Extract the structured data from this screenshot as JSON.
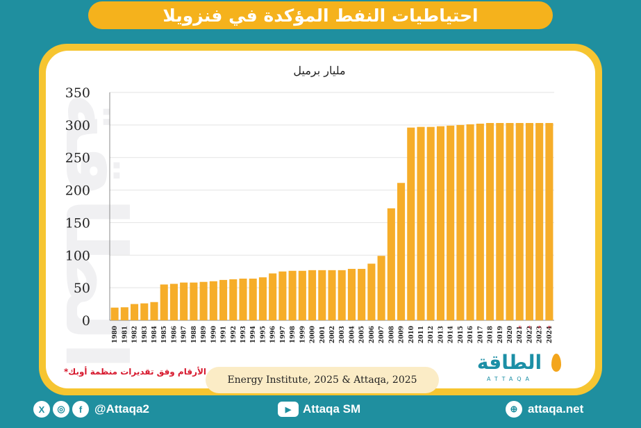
{
  "title": "احتياطيات النفط المؤكدة في فنزويلا",
  "unit_label": "مليار برميل",
  "note": "*الأرقام وفق تقديرات منظمة أوبك",
  "source": "Energy Institute, 2025 & Attaqa, 2025",
  "logo": {
    "arabic": "الطاقة",
    "latin": "ATTAQA",
    "watermark": "الطاقة"
  },
  "footer": {
    "social_handle": "@Attaqa2",
    "youtube": "Attaqa SM",
    "website": "attaqa.net",
    "social_icons": [
      "x-icon",
      "instagram-icon",
      "facebook-icon"
    ],
    "youtube_icon": "youtube-icon",
    "globe_icon": "globe-icon"
  },
  "colors": {
    "background": "#1f8f9f",
    "accent": "#f5b21c",
    "bar": "#f6ad29",
    "note": "#d7192e",
    "star": "#d7192e"
  },
  "chart_data": {
    "type": "bar",
    "categories": [
      "1980",
      "1981",
      "1982",
      "1983",
      "1984",
      "1985",
      "1986",
      "1987",
      "1988",
      "1989",
      "1990",
      "1991",
      "1992",
      "1993",
      "1994",
      "1995",
      "1996",
      "1997",
      "1998",
      "1999",
      "2000",
      "2001",
      "2002",
      "2003",
      "2004",
      "2005",
      "2006",
      "2007",
      "2008",
      "2009",
      "2010",
      "2011",
      "2012",
      "2013",
      "2014",
      "2015",
      "2016",
      "2017",
      "2018",
      "2019",
      "2020",
      "2021",
      "2022",
      "2023",
      "2024"
    ],
    "values": [
      19.5,
      20,
      25,
      26,
      28,
      55,
      56,
      58,
      58,
      59,
      60,
      62,
      63,
      64,
      64,
      66,
      72,
      75,
      76,
      76,
      77,
      77,
      77,
      77,
      79,
      79,
      87,
      99,
      172,
      211,
      296,
      297,
      297,
      298,
      299,
      300,
      301,
      302,
      303,
      303,
      303,
      303,
      303,
      303,
      303
    ],
    "opec_estimate_years": [
      "2021",
      "2022",
      "2023",
      "2024"
    ],
    "ylim": [
      0,
      350
    ],
    "yticks": [
      0,
      50,
      100,
      150,
      200,
      250,
      300,
      350
    ],
    "ylabel": "مليار برميل",
    "grid": true
  }
}
